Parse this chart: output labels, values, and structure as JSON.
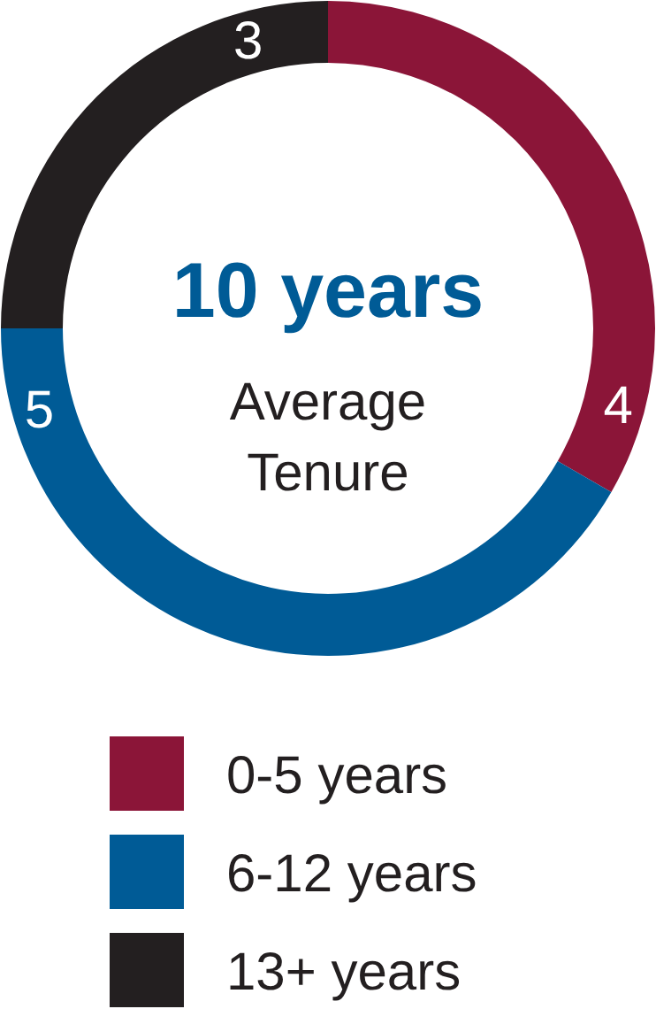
{
  "chart_data": {
    "type": "donut",
    "categories": [
      "0-5 years",
      "6-12 years",
      "13+ years"
    ],
    "values": [
      4,
      5,
      3
    ],
    "colors": [
      "#8b1538",
      "#005b96",
      "#231f20"
    ],
    "data_labels": true,
    "legend": "bottom",
    "annotations": [
      "10 years",
      "Average Tenure"
    ]
  }
}
